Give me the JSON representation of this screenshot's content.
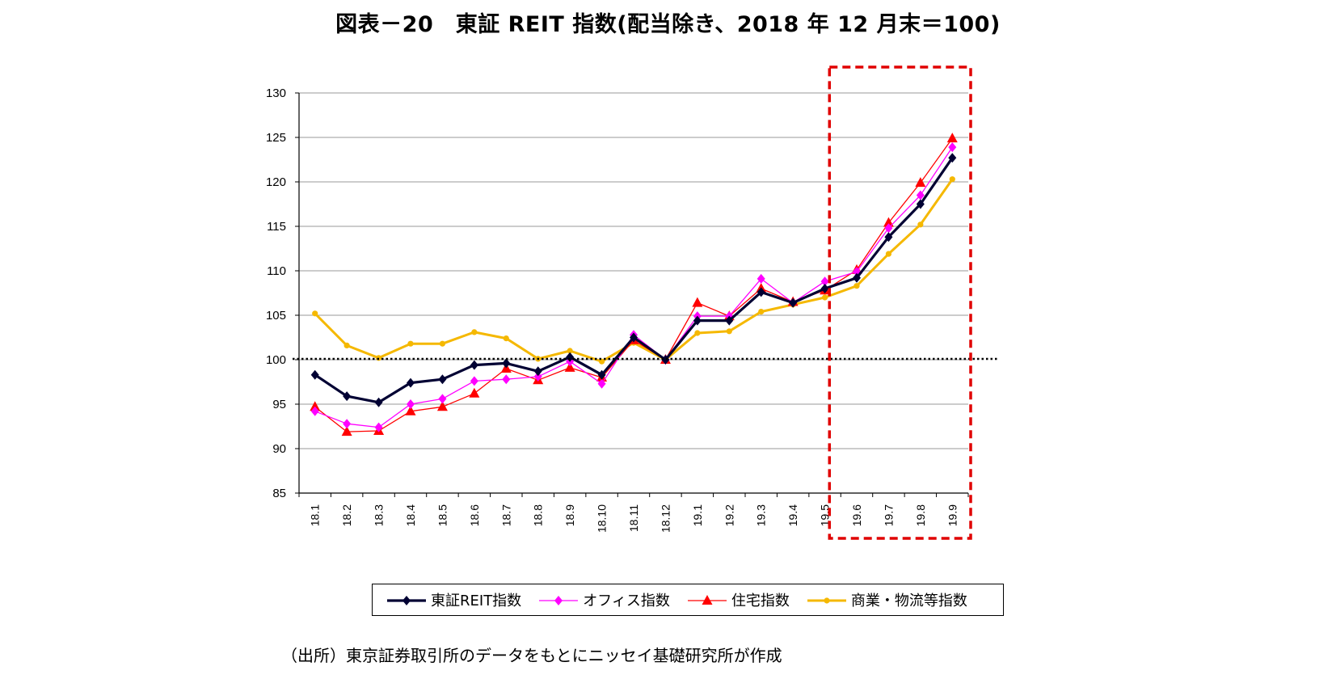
{
  "title": "図表－20　東証 REIT 指数(配当除き、2018 年 12 月末＝100)",
  "source_note": "（出所）東京証券取引所のデータをもとにニッセイ基礎研究所が作成",
  "colors": {
    "reit": "#000033",
    "office": "#ff00ff",
    "residential": "#ff0000",
    "commercial": "#f5b800",
    "highlight_box": "#e00000",
    "grid": "#999999"
  },
  "chart_data": {
    "type": "line",
    "title": "図表－20　東証 REIT 指数(配当除き、2018 年 12 月末＝100)",
    "xlabel": "",
    "ylabel": "",
    "ylim": [
      85,
      130
    ],
    "yticks": [
      85,
      90,
      95,
      100,
      105,
      110,
      115,
      120,
      125,
      130
    ],
    "grid": true,
    "reference_line": 100,
    "highlight_categories": [
      "19.6",
      "19.7",
      "19.8",
      "19.9"
    ],
    "categories": [
      "18.1",
      "18.2",
      "18.3",
      "18.4",
      "18.5",
      "18.6",
      "18.7",
      "18.8",
      "18.9",
      "18.10",
      "18.11",
      "18.12",
      "19.1",
      "19.2",
      "19.3",
      "19.4",
      "19.5",
      "19.6",
      "19.7",
      "19.8",
      "19.9"
    ],
    "series": [
      {
        "key": "commercial",
        "name": "商業・物流等指数",
        "marker": "circle",
        "values": [
          105.2,
          101.6,
          100.2,
          101.8,
          101.8,
          103.1,
          102.4,
          100.1,
          101.0,
          99.8,
          101.9,
          100.0,
          103.0,
          103.2,
          105.4,
          106.2,
          107.0,
          108.3,
          111.9,
          115.2,
          120.3
        ]
      },
      {
        "key": "residential",
        "name": "住宅指数",
        "marker": "triangle",
        "values": [
          94.7,
          91.9,
          92.0,
          94.2,
          94.7,
          96.2,
          99.0,
          97.7,
          99.1,
          98.0,
          102.2,
          100.0,
          106.4,
          104.9,
          108.0,
          106.5,
          107.8,
          110.1,
          115.4,
          119.9,
          124.9
        ]
      },
      {
        "key": "office",
        "name": "オフィス指数",
        "marker": "diamond",
        "values": [
          94.2,
          92.8,
          92.4,
          95.0,
          95.6,
          97.6,
          97.8,
          98.1,
          99.8,
          97.3,
          102.8,
          100.0,
          104.9,
          104.9,
          109.1,
          106.4,
          108.8,
          109.9,
          114.8,
          118.5,
          123.9
        ]
      },
      {
        "key": "reit",
        "name": "東証REIT指数",
        "marker": "diamond",
        "values": [
          98.3,
          95.9,
          95.2,
          97.4,
          97.8,
          99.4,
          99.6,
          98.7,
          100.3,
          98.3,
          102.5,
          100.0,
          104.4,
          104.4,
          107.6,
          106.4,
          108.0,
          109.2,
          113.8,
          117.5,
          122.7
        ]
      }
    ],
    "legend_order": [
      "reit",
      "office",
      "residential",
      "commercial"
    ],
    "legend_position": "bottom"
  }
}
